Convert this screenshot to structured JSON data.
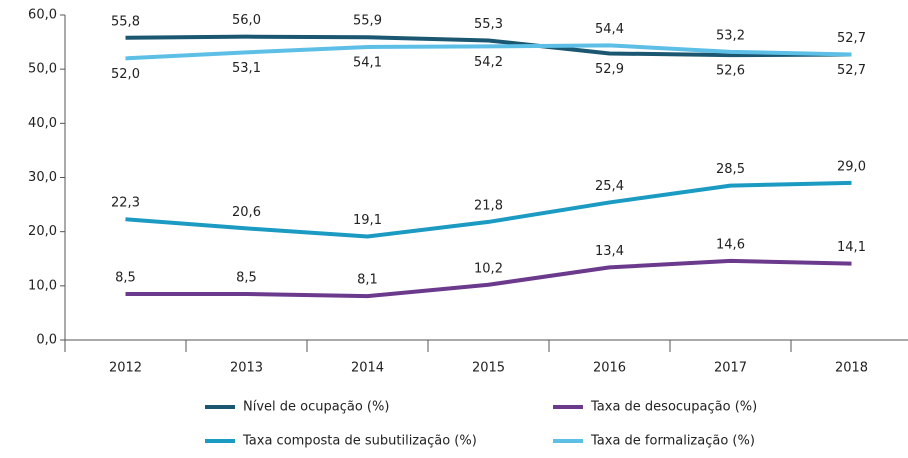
{
  "chart_data": {
    "type": "line",
    "categories": [
      "2012",
      "2013",
      "2014",
      "2015",
      "2016",
      "2017",
      "2018"
    ],
    "series": [
      {
        "name": "Nível de ocupação (%)",
        "color": "#1b5770",
        "values": [
          55.8,
          56.0,
          55.9,
          55.3,
          52.9,
          52.6,
          52.7
        ],
        "value_labels": [
          "55,8",
          "56,0",
          "55,9",
          "55,3",
          "52,9",
          "52,6",
          "52,7"
        ]
      },
      {
        "name": "Taxa de desocupação (%)",
        "color": "#6b3a8c",
        "values": [
          8.5,
          8.5,
          8.1,
          10.2,
          13.4,
          14.6,
          14.1
        ],
        "value_labels": [
          "8,5",
          "8,5",
          "8,1",
          "10,2",
          "13,4",
          "14,6",
          "14,1"
        ]
      },
      {
        "name": "Taxa composta de subutilização (%)",
        "color": "#1b9ac2",
        "values": [
          22.3,
          20.6,
          19.1,
          21.8,
          25.4,
          28.5,
          29.0
        ],
        "value_labels": [
          "22,3",
          "20,6",
          "19,1",
          "21,8",
          "25,4",
          "28,5",
          "29,0"
        ]
      },
      {
        "name": "Taxa de formalização (%)",
        "color": "#5dbfe6",
        "values": [
          52.0,
          53.1,
          54.1,
          54.2,
          54.4,
          53.2,
          52.7
        ],
        "value_labels": [
          "52,0",
          "53,1",
          "54,1",
          "54,2",
          "54,4",
          "53,2",
          "52,7"
        ]
      }
    ],
    "ylim": [
      0,
      60
    ],
    "yticks": [
      {
        "value": 0,
        "label": "0,0"
      },
      {
        "value": 10,
        "label": "10,0"
      },
      {
        "value": 20,
        "label": "20,0"
      },
      {
        "value": 30,
        "label": "30,0"
      },
      {
        "value": 40,
        "label": "40,0"
      },
      {
        "value": 50,
        "label": "50,0"
      },
      {
        "value": 60,
        "label": "60,0"
      }
    ],
    "grid": false
  }
}
